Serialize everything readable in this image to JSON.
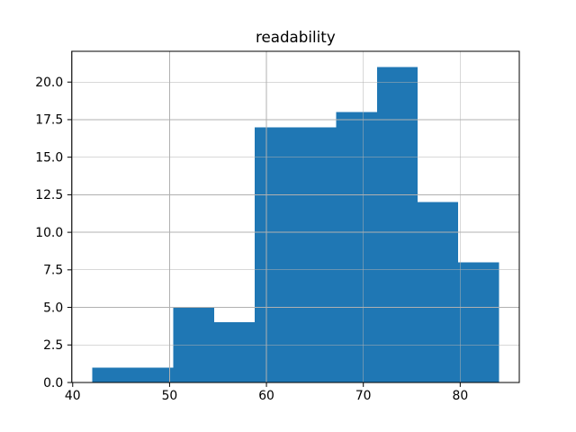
{
  "figure": {
    "background": "#ffffff"
  },
  "chart_data": {
    "type": "histogram",
    "title": "readability",
    "xlabel": "",
    "ylabel": "",
    "grid": true,
    "legend": null,
    "bar_color": "#1f77b4",
    "grid_color": "#b0b0b0",
    "spine_color": "#000000",
    "text_color": "#000000",
    "bins": {
      "edges": [
        42.0,
        46.2,
        50.4,
        54.6,
        58.8,
        63.0,
        67.2,
        71.4,
        75.6,
        79.8,
        84.0
      ],
      "counts": [
        1,
        1,
        5,
        4,
        17,
        17,
        18,
        21,
        12,
        8
      ]
    },
    "x_axis": {
      "lim": [
        39.9,
        86.1
      ],
      "ticks": [
        40,
        50,
        60,
        70,
        80
      ],
      "tick_labels": [
        "40",
        "50",
        "60",
        "70",
        "80"
      ]
    },
    "y_axis": {
      "lim": [
        0,
        22.05
      ],
      "ticks": [
        0,
        2.5,
        5,
        7.5,
        10,
        12.5,
        15,
        17.5,
        20
      ],
      "tick_labels": [
        "0.0",
        "2.5",
        "5.0",
        "7.5",
        "10.0",
        "12.5",
        "15.0",
        "17.5",
        "20.0"
      ]
    }
  }
}
